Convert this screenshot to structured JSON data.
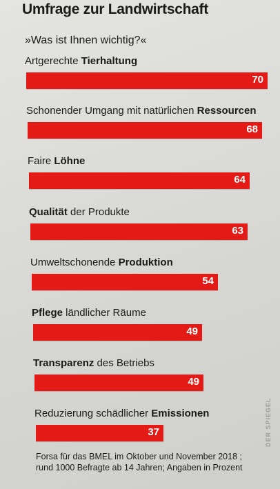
{
  "header": {
    "title": "Umfrage zur Landwirtschaft",
    "subtitle": "»Was ist Ihnen wichtig?«"
  },
  "chart_data": {
    "type": "bar",
    "orientation": "horizontal",
    "title": "Umfrage zur Landwirtschaft",
    "subtitle": "»Was ist Ihnen wichtig?«",
    "bar_color": "#e41a16",
    "categories": [
      "Artgerechte Tierhaltung",
      "Schonender Umgang mit natürlichen Ressourcen",
      "Faire Löhne",
      "Qualität der Produkte",
      "Umweltschonende Produktion",
      "Pflege ländlicher Räume",
      "Transparenz des Betriebs",
      "Reduzierung schädlicher Emissionen"
    ],
    "label_parts": [
      {
        "pre": "Artgerechte ",
        "bold": "Tierhaltung",
        "post": ""
      },
      {
        "pre": "Schonender Umgang mit natürlichen ",
        "bold": "Ressourcen",
        "post": ""
      },
      {
        "pre": "Faire ",
        "bold": "Löhne",
        "post": ""
      },
      {
        "pre": "",
        "bold": "Qualität",
        "post": " der Produkte"
      },
      {
        "pre": "Umweltschonende ",
        "bold": "Produktion",
        "post": ""
      },
      {
        "pre": "",
        "bold": "Pflege",
        "post": " ländlicher Räume"
      },
      {
        "pre": "",
        "bold": "Transparenz",
        "post": " des Betriebs"
      },
      {
        "pre": "Reduzierung schädlicher ",
        "bold": "Emissionen",
        "post": ""
      }
    ],
    "values": [
      70,
      68,
      64,
      63,
      54,
      49,
      49,
      37
    ]
  },
  "source": "Forsa für das BMEL im Oktober und November 2018 ; rund 1000 Befragte ab 14 Jahren; Angaben in Prozent",
  "watermark": "DER SPIEGEL"
}
